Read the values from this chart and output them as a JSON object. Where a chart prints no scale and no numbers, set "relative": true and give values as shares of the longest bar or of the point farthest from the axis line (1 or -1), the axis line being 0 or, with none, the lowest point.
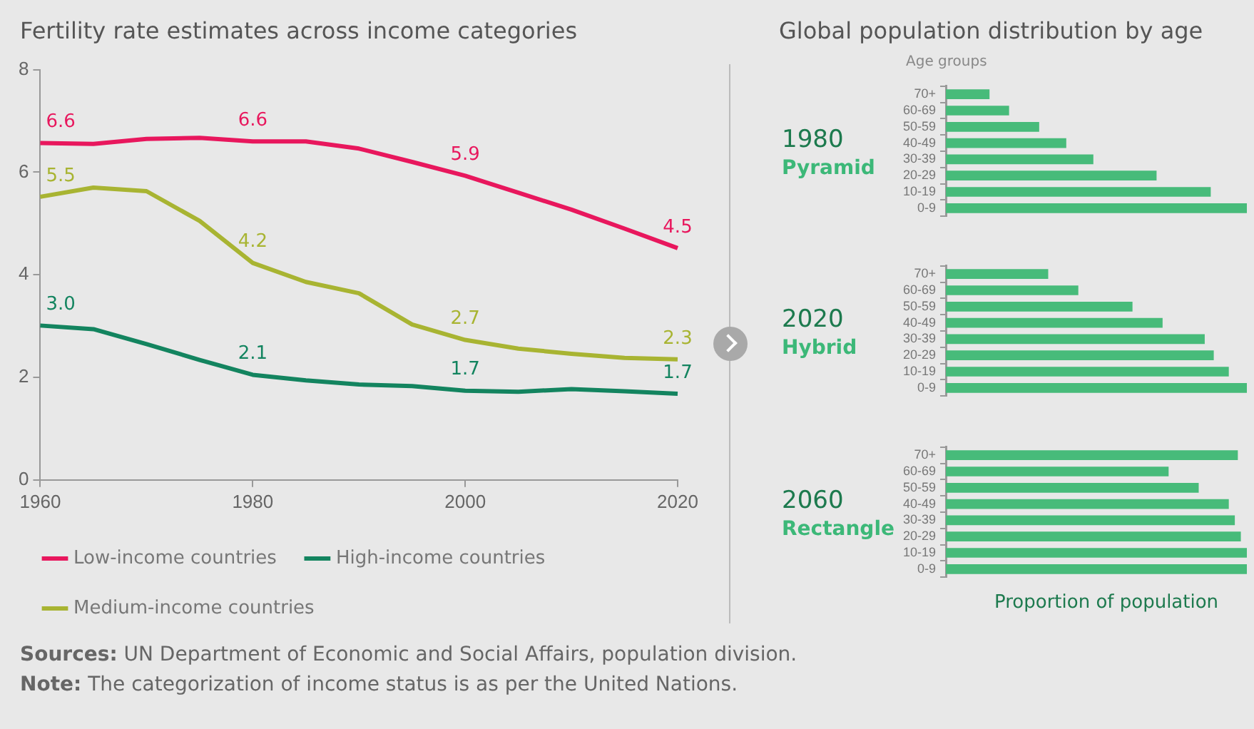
{
  "chart_data": [
    {
      "type": "line",
      "title": "Fertility rate estimates across income categories",
      "x": [
        1960,
        1965,
        1970,
        1975,
        1980,
        1985,
        1990,
        1995,
        2000,
        2005,
        2010,
        2015,
        2020
      ],
      "xlim": [
        1960,
        2020
      ],
      "xticks": [
        1960,
        1980,
        2000,
        2020
      ],
      "ylim": [
        0,
        8
      ],
      "yticks": [
        0,
        2,
        4,
        6,
        8
      ],
      "grid": false,
      "legend": "bottom",
      "marker": "none",
      "line_style": "solid",
      "series": [
        {
          "name": "Low-income countries",
          "color": "#e8175d",
          "values": [
            6.57,
            6.55,
            6.65,
            6.67,
            6.6,
            6.6,
            6.46,
            6.2,
            5.93,
            5.6,
            5.27,
            4.9,
            4.52
          ],
          "value_labels": [
            "6.6",
            null,
            null,
            null,
            "6.6",
            null,
            null,
            null,
            "5.9",
            null,
            null,
            null,
            "4.5"
          ]
        },
        {
          "name": "High-income countries",
          "color": "#13845f",
          "values": [
            3.01,
            2.94,
            2.65,
            2.34,
            2.05,
            1.94,
            1.86,
            1.83,
            1.74,
            1.72,
            1.77,
            1.73,
            1.68
          ],
          "value_labels": [
            "3.0",
            null,
            null,
            null,
            "2.1",
            null,
            null,
            null,
            "1.7",
            null,
            null,
            null,
            "1.7"
          ]
        },
        {
          "name": "Medium-income countries",
          "color": "#a8b432",
          "values": [
            5.52,
            5.7,
            5.63,
            5.05,
            4.23,
            3.86,
            3.64,
            3.03,
            2.73,
            2.56,
            2.46,
            2.38,
            2.35
          ],
          "value_labels": [
            "5.5",
            null,
            null,
            null,
            "4.2",
            null,
            null,
            null,
            "2.7",
            null,
            null,
            null,
            "2.3"
          ]
        }
      ],
      "annotations": [
        "Sources: UN Department of Economic and Social Affairs, population division.",
        "Note: The categorization of income status is as per the United Nations."
      ]
    },
    {
      "type": "other",
      "title": "Global population distribution by age"
    },
    {
      "type": "bar",
      "orientation": "horizontal",
      "relative": true,
      "title": "1980",
      "subtitle": "Pyramid",
      "ylabel": "Age groups",
      "categories": [
        "70+",
        "60-69",
        "50-59",
        "40-49",
        "30-39",
        "20-29",
        "10-19",
        "0-9"
      ],
      "color": "#47bb7a",
      "values": [
        0.145,
        0.21,
        0.31,
        0.4,
        0.49,
        0.7,
        0.88,
        1
      ]
    },
    {
      "type": "bar",
      "orientation": "horizontal",
      "relative": true,
      "title": "2020",
      "subtitle": "Hybrid",
      "categories": [
        "70+",
        "60-69",
        "50-59",
        "40-49",
        "30-39",
        "20-29",
        "10-19",
        "0-9"
      ],
      "color": "#47bb7a",
      "values": [
        0.34,
        0.44,
        0.62,
        0.72,
        0.86,
        0.89,
        0.94,
        1
      ]
    },
    {
      "type": "bar",
      "orientation": "horizontal",
      "relative": true,
      "title": "2060",
      "subtitle": "Rectangle",
      "xlabel": "Proportion of population",
      "categories": [
        "70+",
        "60-69",
        "50-59",
        "40-49",
        "30-39",
        "20-29",
        "10-19",
        "0-9"
      ],
      "color": "#47bb7a",
      "values": [
        0.97,
        0.74,
        0.84,
        0.94,
        0.96,
        0.98,
        1,
        1
      ]
    }
  ]
}
